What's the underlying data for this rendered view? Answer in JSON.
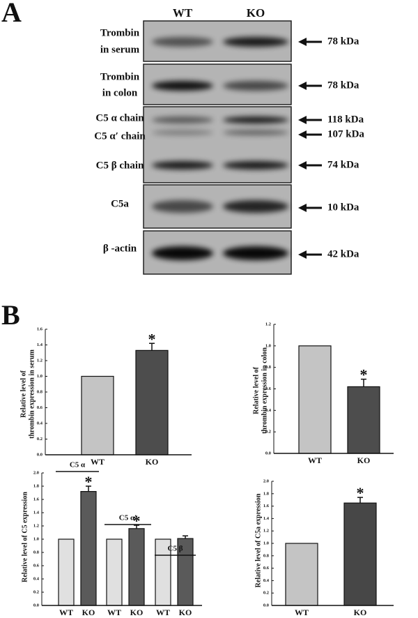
{
  "panel_a": {
    "label": "A",
    "columns": [
      "WT",
      "KO"
    ],
    "blots": [
      {
        "names": [
          "Trombin",
          "in serum"
        ],
        "markers": [
          "78 kDa"
        ]
      },
      {
        "names": [
          "Trombin",
          "in colon"
        ],
        "markers": [
          "78 kDa"
        ]
      },
      {
        "names": [
          "C5 α chain",
          "C5 α′ chain",
          "C5 β chain"
        ],
        "markers": [
          "118 kDa",
          "107 kDa",
          "74 kDa"
        ]
      },
      {
        "names": [
          "C5a"
        ],
        "markers": [
          "10 kDa"
        ]
      },
      {
        "names": [
          "β -actin"
        ],
        "markers": [
          "42 kDa"
        ]
      }
    ]
  },
  "panel_b_label": "B",
  "chart_data": [
    {
      "type": "bar",
      "ylabel": [
        "Relative level of",
        "thrombin expression in serum"
      ],
      "categories": [
        "WT",
        "KO"
      ],
      "values": [
        1.0,
        1.33
      ],
      "errors": [
        null,
        0.09
      ],
      "significance": [
        null,
        "*"
      ],
      "colors": [
        "#c4c4c4",
        "#4d4d4d"
      ],
      "ylim": [
        0,
        1.6
      ],
      "yticks": [
        {
          "value": 0,
          "label": "0.0"
        },
        {
          "value": 0.2,
          "label": "0.2"
        },
        {
          "value": 0.4,
          "label": "0.4"
        },
        {
          "value": 0.6,
          "label": "0.6"
        },
        {
          "value": 0.8,
          "label": "0.8"
        },
        {
          "value": 1.0,
          "label": "1.0"
        },
        {
          "value": 1.2,
          "label": "1.2"
        },
        {
          "value": 1.4,
          "label": "1.4"
        },
        {
          "value": 1.6,
          "label": "1.6"
        }
      ]
    },
    {
      "type": "bar",
      "ylabel": [
        "Relative level of",
        "thrombin expression in colon"
      ],
      "categories": [
        "WT",
        "KO"
      ],
      "values": [
        1.0,
        0.62
      ],
      "errors": [
        null,
        0.07
      ],
      "significance": [
        null,
        "*"
      ],
      "colors": [
        "#c4c4c4",
        "#4d4d4d"
      ],
      "ylim": [
        0,
        1.2
      ],
      "yticks": [
        {
          "value": 0,
          "label": "0.0"
        },
        {
          "value": 0.2,
          "label": "0.2"
        },
        {
          "value": 0.4,
          "label": "0.4"
        },
        {
          "value": 0.6,
          "label": "0.6"
        },
        {
          "value": 0.8,
          "label": "0.8"
        },
        {
          "value": 1.0,
          "label": "1.0"
        },
        {
          "value": 1.2,
          "label": "1.2"
        }
      ]
    },
    {
      "type": "bar",
      "ylabel": [
        "Relative level of C5 expression"
      ],
      "categories": [
        "WT",
        "KO",
        "WT",
        "KO",
        "WT",
        "KO"
      ],
      "values": [
        1.0,
        1.72,
        1.0,
        1.16,
        1.0,
        1.01
      ],
      "errors": [
        null,
        0.08,
        null,
        0.05,
        null,
        0.04
      ],
      "significance": [
        null,
        "*",
        null,
        "*",
        null,
        null
      ],
      "groups": [
        "C5 α",
        "C5 α′",
        "C5 β"
      ],
      "colors": [
        "#e0e0e0",
        "#5a5a5a",
        "#e0e0e0",
        "#5a5a5a",
        "#e0e0e0",
        "#5a5a5a"
      ],
      "ylim": [
        0,
        2.0
      ],
      "yticks": [
        {
          "value": 0,
          "label": "0.0"
        },
        {
          "value": 0.2,
          "label": "0.2"
        },
        {
          "value": 0.4,
          "label": "0.4"
        },
        {
          "value": 0.6,
          "label": "0.6"
        },
        {
          "value": 0.8,
          "label": "0.8"
        },
        {
          "value": 1.0,
          "label": "1.0"
        },
        {
          "value": 1.2,
          "label": "1.2"
        },
        {
          "value": 1.4,
          "label": "1.4"
        },
        {
          "value": 1.6,
          "label": "1.6"
        },
        {
          "value": 1.8,
          "label": "1.8"
        },
        {
          "value": 2.0,
          "label": "2.0"
        }
      ]
    },
    {
      "type": "bar",
      "ylabel": [
        "Relative level of C5a expression"
      ],
      "categories": [
        "WT",
        "KO"
      ],
      "values": [
        1.0,
        1.65
      ],
      "errors": [
        null,
        0.09
      ],
      "significance": [
        null,
        "*"
      ],
      "colors": [
        "#c4c4c4",
        "#474747"
      ],
      "ylim": [
        0,
        2.0
      ],
      "yticks": [
        {
          "value": 0,
          "label": "0.0"
        },
        {
          "value": 0.2,
          "label": "0.2"
        },
        {
          "value": 0.4,
          "label": "0.4"
        },
        {
          "value": 0.6,
          "label": "0.6"
        },
        {
          "value": 0.8,
          "label": "0.8"
        },
        {
          "value": 1.0,
          "label": "1.0"
        },
        {
          "value": 1.2,
          "label": "1.2"
        },
        {
          "value": 1.4,
          "label": "1.4"
        },
        {
          "value": 1.6,
          "label": "1.6"
        },
        {
          "value": 1.8,
          "label": "1.8"
        },
        {
          "value": 2.0,
          "label": "2.0"
        }
      ]
    }
  ]
}
